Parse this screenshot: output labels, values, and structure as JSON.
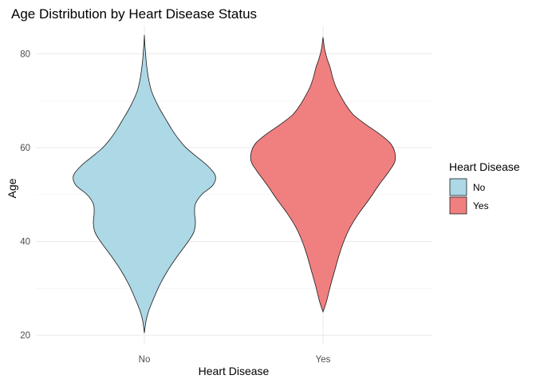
{
  "chart_data": {
    "type": "violin",
    "title": "Age Distribution by Heart Disease Status",
    "xlabel": "Heart Disease",
    "ylabel": "Age",
    "categories": [
      "No",
      "Yes"
    ],
    "y_ticks": [
      20,
      40,
      60,
      80
    ],
    "ylim": [
      18,
      86
    ],
    "grid": true,
    "legend": {
      "title": "Heart Disease",
      "position": "right",
      "entries": [
        {
          "label": "No",
          "color": "#add8e6"
        },
        {
          "label": "Yes",
          "color": "#f08080"
        }
      ]
    },
    "series": [
      {
        "category": "No",
        "color": "#add8e6",
        "y_range": [
          20.5,
          84
        ],
        "density_profile": [
          [
            20.5,
            0
          ],
          [
            23,
            0.02
          ],
          [
            25,
            0.05
          ],
          [
            28,
            0.12
          ],
          [
            31,
            0.2
          ],
          [
            34,
            0.3
          ],
          [
            37,
            0.42
          ],
          [
            40,
            0.55
          ],
          [
            42,
            0.62
          ],
          [
            44,
            0.64
          ],
          [
            46,
            0.63
          ],
          [
            48,
            0.64
          ],
          [
            50,
            0.72
          ],
          [
            52,
            0.86
          ],
          [
            54,
            0.89
          ],
          [
            56,
            0.8
          ],
          [
            58,
            0.66
          ],
          [
            60,
            0.52
          ],
          [
            62,
            0.42
          ],
          [
            64,
            0.34
          ],
          [
            66,
            0.27
          ],
          [
            68,
            0.2
          ],
          [
            70,
            0.14
          ],
          [
            72,
            0.09
          ],
          [
            74,
            0.06
          ],
          [
            76,
            0.04
          ],
          [
            78,
            0.025
          ],
          [
            80,
            0.015
          ],
          [
            82,
            0.006
          ],
          [
            84,
            0
          ]
        ]
      },
      {
        "category": "Yes",
        "color": "#f08080",
        "y_range": [
          25,
          83.5
        ],
        "density_profile": [
          [
            25,
            0
          ],
          [
            27,
            0.04
          ],
          [
            29,
            0.07
          ],
          [
            31,
            0.1
          ],
          [
            34,
            0.15
          ],
          [
            37,
            0.2
          ],
          [
            40,
            0.26
          ],
          [
            43,
            0.34
          ],
          [
            46,
            0.45
          ],
          [
            49,
            0.58
          ],
          [
            52,
            0.7
          ],
          [
            55,
            0.83
          ],
          [
            57,
            0.9
          ],
          [
            59,
            0.9
          ],
          [
            61,
            0.84
          ],
          [
            63,
            0.7
          ],
          [
            65,
            0.53
          ],
          [
            67,
            0.38
          ],
          [
            69,
            0.29
          ],
          [
            71,
            0.22
          ],
          [
            73,
            0.16
          ],
          [
            75,
            0.12
          ],
          [
            77,
            0.09
          ],
          [
            79,
            0.05
          ],
          [
            81,
            0.02
          ],
          [
            83.5,
            0
          ]
        ]
      }
    ]
  }
}
